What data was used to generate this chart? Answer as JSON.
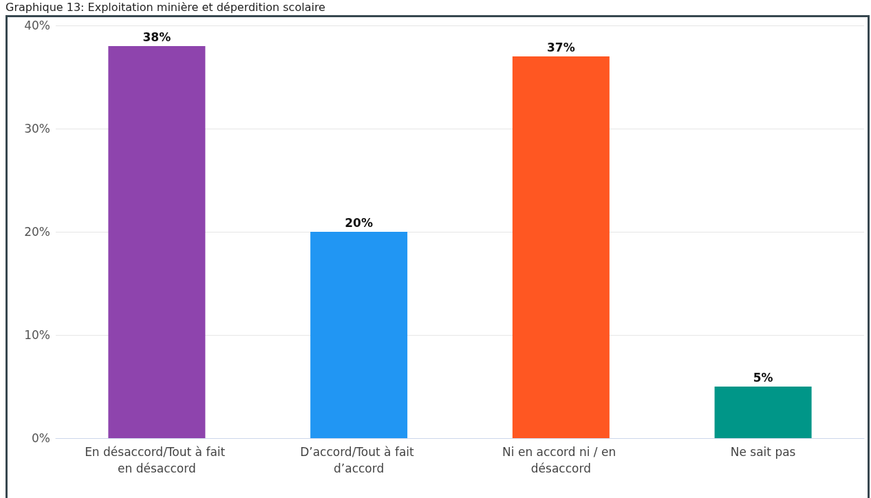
{
  "chart_data": {
    "type": "bar",
    "title": "Graphique 13: Exploitation minière et déperdition scolaire",
    "categories": [
      "En désaccord/Tout à fait en désaccord",
      "D’accord/Tout à fait d’accord",
      "Ni en accord ni / en désaccord",
      "Ne sait pas"
    ],
    "values": [
      38,
      20,
      37,
      5
    ],
    "colors": [
      "#8e44ad",
      "#2196f3",
      "#ff5722",
      "#009688"
    ],
    "value_labels": [
      "38%",
      "20%",
      "37%",
      "5%"
    ],
    "ylim": [
      0,
      40
    ],
    "yticks": [
      {
        "value": 0,
        "label": "0%"
      },
      {
        "value": 10,
        "label": "10%"
      },
      {
        "value": 20,
        "label": "20%"
      },
      {
        "value": 30,
        "label": "30%"
      },
      {
        "value": 40,
        "label": "40%"
      }
    ],
    "grid": "y"
  }
}
